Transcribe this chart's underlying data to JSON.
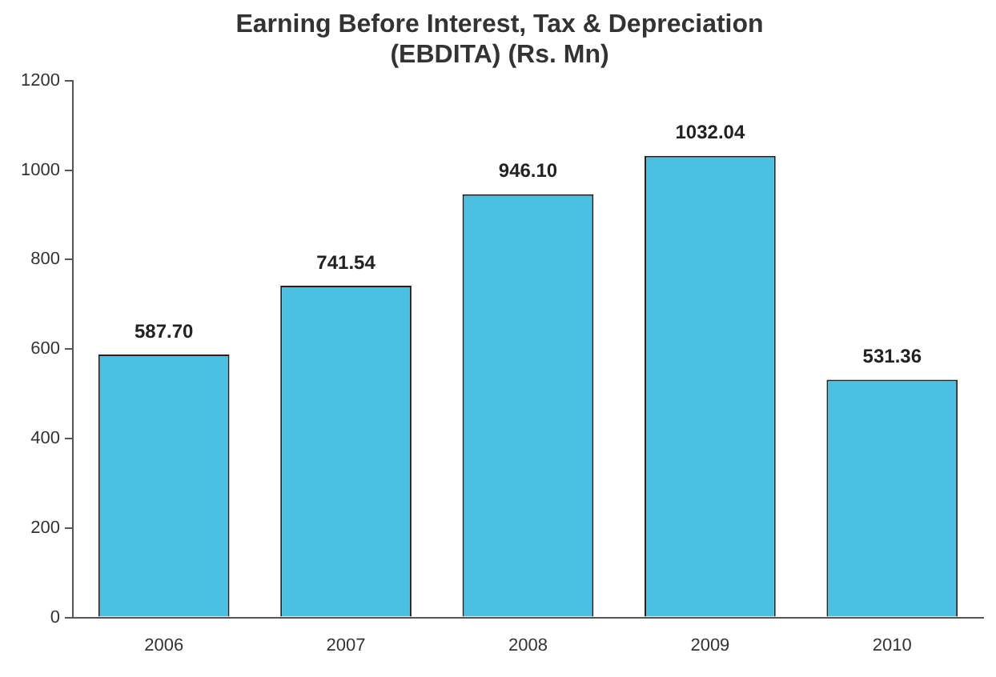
{
  "chart_data": {
    "type": "bar",
    "title": "Earning Before Interest, Tax & Depreciation\n(EBDITA) (Rs. Mn)",
    "categories": [
      "2006",
      "2007",
      "2008",
      "2009",
      "2010"
    ],
    "values": [
      587.7,
      741.54,
      946.1,
      1032.04,
      531.36
    ],
    "value_labels": [
      "587.70",
      "741.54",
      "946.10",
      "1032.04",
      "531.36"
    ],
    "color": "#4cc0e2",
    "ylim": [
      0,
      1200
    ],
    "yticks": [
      0,
      200,
      400,
      600,
      800,
      1000,
      1200
    ],
    "grid": false,
    "legend": false
  }
}
